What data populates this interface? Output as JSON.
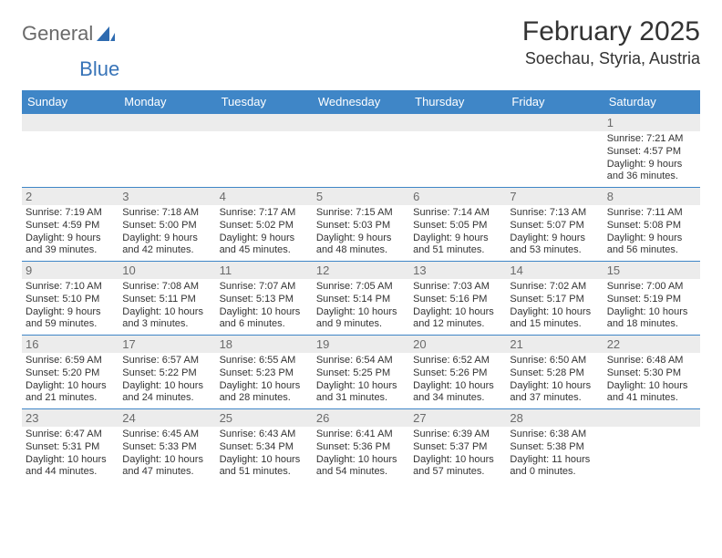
{
  "styling": {
    "header_bg": "#3f86c7",
    "header_fg": "#ffffff",
    "daynum_bg": "#ececec",
    "daynum_fg": "#6b6b6b",
    "text_color": "#333333",
    "week_border": "#3f86c7",
    "page_bg": "#ffffff",
    "logo_gray": "#6a6a6a",
    "logo_blue": "#3874b8",
    "month_fontsize": 30,
    "location_fontsize": 18,
    "weekday_fontsize": 13,
    "daynum_fontsize": 13,
    "detail_fontsize": 11,
    "columns": 7
  },
  "logo": {
    "part1": "General",
    "part2": "Blue"
  },
  "title": {
    "month": "February 2025",
    "location": "Soechau, Styria, Austria"
  },
  "weekdays": [
    "Sunday",
    "Monday",
    "Tuesday",
    "Wednesday",
    "Thursday",
    "Friday",
    "Saturday"
  ],
  "weeks": [
    [
      {
        "num": "",
        "sunrise": "",
        "sunset": "",
        "daylight": ""
      },
      {
        "num": "",
        "sunrise": "",
        "sunset": "",
        "daylight": ""
      },
      {
        "num": "",
        "sunrise": "",
        "sunset": "",
        "daylight": ""
      },
      {
        "num": "",
        "sunrise": "",
        "sunset": "",
        "daylight": ""
      },
      {
        "num": "",
        "sunrise": "",
        "sunset": "",
        "daylight": ""
      },
      {
        "num": "",
        "sunrise": "",
        "sunset": "",
        "daylight": ""
      },
      {
        "num": "1",
        "sunrise": "Sunrise: 7:21 AM",
        "sunset": "Sunset: 4:57 PM",
        "daylight": "Daylight: 9 hours and 36 minutes."
      }
    ],
    [
      {
        "num": "2",
        "sunrise": "Sunrise: 7:19 AM",
        "sunset": "Sunset: 4:59 PM",
        "daylight": "Daylight: 9 hours and 39 minutes."
      },
      {
        "num": "3",
        "sunrise": "Sunrise: 7:18 AM",
        "sunset": "Sunset: 5:00 PM",
        "daylight": "Daylight: 9 hours and 42 minutes."
      },
      {
        "num": "4",
        "sunrise": "Sunrise: 7:17 AM",
        "sunset": "Sunset: 5:02 PM",
        "daylight": "Daylight: 9 hours and 45 minutes."
      },
      {
        "num": "5",
        "sunrise": "Sunrise: 7:15 AM",
        "sunset": "Sunset: 5:03 PM",
        "daylight": "Daylight: 9 hours and 48 minutes."
      },
      {
        "num": "6",
        "sunrise": "Sunrise: 7:14 AM",
        "sunset": "Sunset: 5:05 PM",
        "daylight": "Daylight: 9 hours and 51 minutes."
      },
      {
        "num": "7",
        "sunrise": "Sunrise: 7:13 AM",
        "sunset": "Sunset: 5:07 PM",
        "daylight": "Daylight: 9 hours and 53 minutes."
      },
      {
        "num": "8",
        "sunrise": "Sunrise: 7:11 AM",
        "sunset": "Sunset: 5:08 PM",
        "daylight": "Daylight: 9 hours and 56 minutes."
      }
    ],
    [
      {
        "num": "9",
        "sunrise": "Sunrise: 7:10 AM",
        "sunset": "Sunset: 5:10 PM",
        "daylight": "Daylight: 9 hours and 59 minutes."
      },
      {
        "num": "10",
        "sunrise": "Sunrise: 7:08 AM",
        "sunset": "Sunset: 5:11 PM",
        "daylight": "Daylight: 10 hours and 3 minutes."
      },
      {
        "num": "11",
        "sunrise": "Sunrise: 7:07 AM",
        "sunset": "Sunset: 5:13 PM",
        "daylight": "Daylight: 10 hours and 6 minutes."
      },
      {
        "num": "12",
        "sunrise": "Sunrise: 7:05 AM",
        "sunset": "Sunset: 5:14 PM",
        "daylight": "Daylight: 10 hours and 9 minutes."
      },
      {
        "num": "13",
        "sunrise": "Sunrise: 7:03 AM",
        "sunset": "Sunset: 5:16 PM",
        "daylight": "Daylight: 10 hours and 12 minutes."
      },
      {
        "num": "14",
        "sunrise": "Sunrise: 7:02 AM",
        "sunset": "Sunset: 5:17 PM",
        "daylight": "Daylight: 10 hours and 15 minutes."
      },
      {
        "num": "15",
        "sunrise": "Sunrise: 7:00 AM",
        "sunset": "Sunset: 5:19 PM",
        "daylight": "Daylight: 10 hours and 18 minutes."
      }
    ],
    [
      {
        "num": "16",
        "sunrise": "Sunrise: 6:59 AM",
        "sunset": "Sunset: 5:20 PM",
        "daylight": "Daylight: 10 hours and 21 minutes."
      },
      {
        "num": "17",
        "sunrise": "Sunrise: 6:57 AM",
        "sunset": "Sunset: 5:22 PM",
        "daylight": "Daylight: 10 hours and 24 minutes."
      },
      {
        "num": "18",
        "sunrise": "Sunrise: 6:55 AM",
        "sunset": "Sunset: 5:23 PM",
        "daylight": "Daylight: 10 hours and 28 minutes."
      },
      {
        "num": "19",
        "sunrise": "Sunrise: 6:54 AM",
        "sunset": "Sunset: 5:25 PM",
        "daylight": "Daylight: 10 hours and 31 minutes."
      },
      {
        "num": "20",
        "sunrise": "Sunrise: 6:52 AM",
        "sunset": "Sunset: 5:26 PM",
        "daylight": "Daylight: 10 hours and 34 minutes."
      },
      {
        "num": "21",
        "sunrise": "Sunrise: 6:50 AM",
        "sunset": "Sunset: 5:28 PM",
        "daylight": "Daylight: 10 hours and 37 minutes."
      },
      {
        "num": "22",
        "sunrise": "Sunrise: 6:48 AM",
        "sunset": "Sunset: 5:30 PM",
        "daylight": "Daylight: 10 hours and 41 minutes."
      }
    ],
    [
      {
        "num": "23",
        "sunrise": "Sunrise: 6:47 AM",
        "sunset": "Sunset: 5:31 PM",
        "daylight": "Daylight: 10 hours and 44 minutes."
      },
      {
        "num": "24",
        "sunrise": "Sunrise: 6:45 AM",
        "sunset": "Sunset: 5:33 PM",
        "daylight": "Daylight: 10 hours and 47 minutes."
      },
      {
        "num": "25",
        "sunrise": "Sunrise: 6:43 AM",
        "sunset": "Sunset: 5:34 PM",
        "daylight": "Daylight: 10 hours and 51 minutes."
      },
      {
        "num": "26",
        "sunrise": "Sunrise: 6:41 AM",
        "sunset": "Sunset: 5:36 PM",
        "daylight": "Daylight: 10 hours and 54 minutes."
      },
      {
        "num": "27",
        "sunrise": "Sunrise: 6:39 AM",
        "sunset": "Sunset: 5:37 PM",
        "daylight": "Daylight: 10 hours and 57 minutes."
      },
      {
        "num": "28",
        "sunrise": "Sunrise: 6:38 AM",
        "sunset": "Sunset: 5:38 PM",
        "daylight": "Daylight: 11 hours and 0 minutes."
      },
      {
        "num": "",
        "sunrise": "",
        "sunset": "",
        "daylight": ""
      }
    ]
  ]
}
